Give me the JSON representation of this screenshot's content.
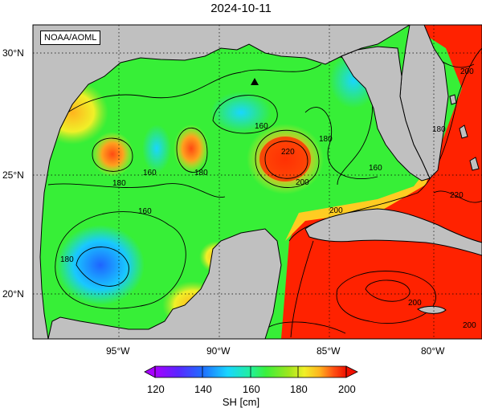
{
  "title": "2024-10-11",
  "credit": "NOAA/AOML",
  "lat_labels": [
    "30°N",
    "25°N",
    "20°N"
  ],
  "lon_labels": [
    "95°W",
    "90°W",
    "85°W",
    "80°W"
  ],
  "contour_labels": [
    "160",
    "180",
    "160",
    "180",
    "220",
    "200",
    "180",
    "160",
    "200",
    "180",
    "200",
    "160",
    "220",
    "200",
    "200",
    "180"
  ],
  "colorbar": {
    "title": "SH [cm]",
    "ticks": [
      "120",
      "140",
      "160",
      "180",
      "200"
    ],
    "min": 120,
    "max": 200,
    "colors": [
      "#a700ff",
      "#4a2cff",
      "#1e7dff",
      "#19d6ff",
      "#22f0a0",
      "#3cf03c",
      "#9ae61e",
      "#f0f028",
      "#ffbe1e",
      "#ff6a14",
      "#ff2200",
      "#f01000"
    ]
  },
  "map_colors": {
    "land": "#c0c0c0",
    "coast": "#000000",
    "gulf_base": "#37ef37",
    "loop_current": "#ff2200"
  }
}
